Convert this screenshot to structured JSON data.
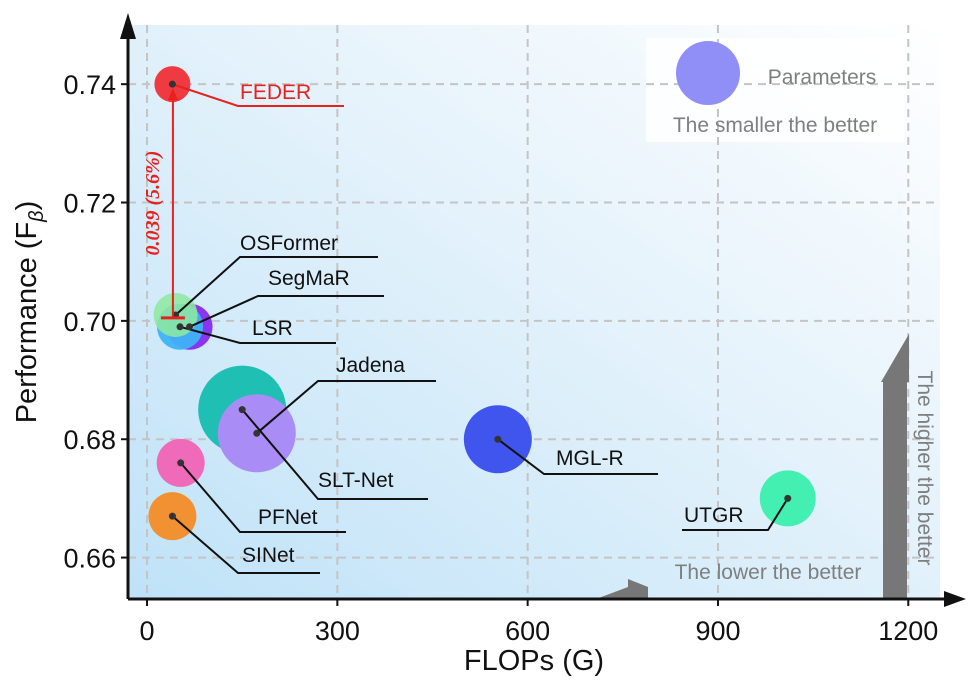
{
  "chart_data": {
    "type": "scatter",
    "title": "",
    "xlabel": "FLOPs (G)",
    "ylabel": "Performance (F",
    "ylabel_sub": "β",
    "ylabel_close": ")",
    "xlim": [
      -30,
      1250
    ],
    "ylim": [
      0.653,
      0.75
    ],
    "xticks": [
      0,
      300,
      600,
      900,
      1200
    ],
    "xtick_labels": [
      "0",
      "300",
      "600",
      "900",
      "1200"
    ],
    "yticks": [
      0.66,
      0.68,
      0.7,
      0.72,
      0.74
    ],
    "ytick_labels": [
      "0.66",
      "0.68",
      "0.70",
      "0.72",
      "0.74"
    ],
    "grid": true,
    "bubble_size_meaning": "Parameters",
    "points": [
      {
        "name": "SLT-Net",
        "x": 150,
        "y": 0.685,
        "color": "#1fbfb3"
      },
      {
        "name": "Jadena",
        "x": 173,
        "y": 0.681,
        "color": "#a98cf5"
      },
      {
        "name": "MGL-R",
        "x": 553,
        "y": 0.68,
        "color": "#3f55ee"
      },
      {
        "name": "UTGR",
        "x": 1010,
        "y": 0.67,
        "color": "#44efb2"
      },
      {
        "name": "PFNet",
        "x": 53,
        "y": 0.676,
        "color": "#ef6ab8"
      },
      {
        "name": "SINet",
        "x": 40,
        "y": 0.667,
        "color": "#f29132"
      },
      {
        "name": "SegMaR",
        "x": 67,
        "y": 0.699,
        "color": "#8a36f0"
      },
      {
        "name": "LSR",
        "x": 52,
        "y": 0.699,
        "color": "#3fb3f7"
      },
      {
        "name": "OSFormer",
        "x": 45,
        "y": 0.701,
        "color": "#8ee8a0"
      },
      {
        "name": "FEDER",
        "x": 40,
        "y": 0.74,
        "color": "#ee3a40"
      }
    ],
    "annotations": {
      "improvement": "0.039 (5.6%)",
      "legend_label": "Parameters",
      "legend_note": "The smaller the better",
      "y_direction": "The higher the better",
      "x_direction": "The lower the better"
    },
    "colors": {
      "highlight": "#e8201e",
      "grid": "#c4c4c4",
      "hint_text": "#7f7f7f",
      "hint_arrow": "#777777",
      "legend_bubble": "#8f8ff7",
      "background": "#c8e6f8"
    }
  }
}
